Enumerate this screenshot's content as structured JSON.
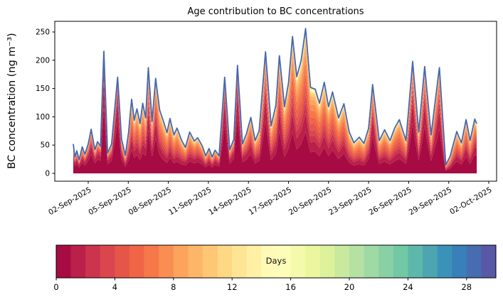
{
  "figure": {
    "title": "Age contribution to BC concentrations",
    "background_color": "#ffffff"
  },
  "axes": {
    "ylabel": "BC concentration (ng m⁻³)",
    "y_ticks": [
      0,
      50,
      100,
      150,
      200,
      250
    ],
    "x_tick_labels": [
      "02-Sep-2025",
      "05-Sep-2025",
      "08-Sep-2025",
      "11-Sep-2025",
      "14-Sep-2025",
      "17-Sep-2025",
      "20-Sep-2025",
      "23-Sep-2025",
      "26-Sep-2025",
      "29-Sep-2025",
      "02-Oct-2025"
    ],
    "x_tick_days": [
      0,
      3,
      6,
      9,
      12,
      15,
      18,
      21,
      24,
      27,
      30
    ],
    "x_tick_rotation_deg": 30,
    "grid": false
  },
  "colorbar": {
    "label": "Days",
    "ticks": [
      0,
      4,
      8,
      12,
      16,
      20,
      24,
      28
    ],
    "min": 0,
    "max": 30,
    "segments": 30,
    "orientation": "horizontal",
    "colormap": "Spectral",
    "colormap_anchors": [
      "#9e0142",
      "#d53e4f",
      "#f46d43",
      "#fdae61",
      "#fee08b",
      "#ffffbf",
      "#e6f598",
      "#abdda4",
      "#66c2a5",
      "#3288bd",
      "#5e4fa2"
    ],
    "outline_color": "#000000"
  },
  "chart_data": {
    "type": "area",
    "subtype": "stacked-age-spectrum",
    "title": "Age contribution to BC concentrations",
    "xlabel": "",
    "ylabel": "BC concentration (ng m⁻³)",
    "x_unit": "days since 02-Sep-2025 00:00 (x axis shows dates)",
    "xlim_days": [
      -2.5,
      30.6
    ],
    "ylim": [
      0,
      269
    ],
    "legend": "colorbar (Days, age of BC, 0-30, 30 discrete 1-day bins, Spectral colormap)",
    "total_line_color": "#4767ae",
    "age_bins": 30,
    "keypoint_format": [
      "day_offset",
      "total_ng_m3",
      "aged_fraction_0to1"
    ],
    "keypoints": [
      [
        -1.12,
        52,
        0.3
      ],
      [
        -1.0,
        29,
        0.3
      ],
      [
        -0.85,
        40,
        0.32
      ],
      [
        -0.68,
        24,
        0.32
      ],
      [
        -0.45,
        47,
        0.35
      ],
      [
        -0.25,
        34,
        0.35
      ],
      [
        0.0,
        52,
        0.32
      ],
      [
        0.22,
        78,
        0.3
      ],
      [
        0.5,
        42,
        0.32
      ],
      [
        0.7,
        56,
        0.3
      ],
      [
        0.92,
        48,
        0.25
      ],
      [
        1.17,
        216,
        0.12
      ],
      [
        1.45,
        36,
        0.28
      ],
      [
        1.75,
        52,
        0.32
      ],
      [
        2.2,
        170,
        0.13
      ],
      [
        2.5,
        60,
        0.35
      ],
      [
        2.78,
        32,
        0.42
      ],
      [
        3.02,
        72,
        0.5
      ],
      [
        3.25,
        131,
        0.5
      ],
      [
        3.45,
        94,
        0.55
      ],
      [
        3.65,
        114,
        0.55
      ],
      [
        3.88,
        88,
        0.58
      ],
      [
        4.08,
        124,
        0.55
      ],
      [
        4.3,
        98,
        0.5
      ],
      [
        4.5,
        187,
        0.35
      ],
      [
        4.78,
        92,
        0.5
      ],
      [
        5.05,
        168,
        0.4
      ],
      [
        5.35,
        112,
        0.55
      ],
      [
        5.62,
        93,
        0.6
      ],
      [
        5.9,
        72,
        0.6
      ],
      [
        6.12,
        97,
        0.55
      ],
      [
        6.42,
        68,
        0.6
      ],
      [
        6.65,
        80,
        0.6
      ],
      [
        7.0,
        58,
        0.58
      ],
      [
        7.28,
        46,
        0.52
      ],
      [
        7.6,
        73,
        0.55
      ],
      [
        7.95,
        57,
        0.52
      ],
      [
        8.2,
        63,
        0.5
      ],
      [
        8.55,
        48,
        0.48
      ],
      [
        8.8,
        31,
        0.45
      ],
      [
        9.05,
        44,
        0.42
      ],
      [
        9.28,
        29,
        0.42
      ],
      [
        9.5,
        41,
        0.4
      ],
      [
        9.8,
        31,
        0.38
      ],
      [
        10.22,
        170,
        0.16
      ],
      [
        10.6,
        42,
        0.35
      ],
      [
        10.9,
        60,
        0.3
      ],
      [
        11.18,
        191,
        0.16
      ],
      [
        11.55,
        52,
        0.4
      ],
      [
        11.85,
        70,
        0.45
      ],
      [
        12.18,
        99,
        0.45
      ],
      [
        12.5,
        58,
        0.52
      ],
      [
        12.8,
        75,
        0.55
      ],
      [
        13.28,
        215,
        0.3
      ],
      [
        13.7,
        84,
        0.58
      ],
      [
        14.05,
        120,
        0.55
      ],
      [
        14.32,
        208,
        0.42
      ],
      [
        14.7,
        118,
        0.62
      ],
      [
        15.0,
        160,
        0.58
      ],
      [
        15.3,
        242,
        0.52
      ],
      [
        15.62,
        171,
        0.62
      ],
      [
        15.95,
        200,
        0.6
      ],
      [
        16.28,
        256,
        0.55
      ],
      [
        16.65,
        152,
        0.62
      ],
      [
        17.0,
        149,
        0.6
      ],
      [
        17.32,
        124,
        0.62
      ],
      [
        17.68,
        161,
        0.55
      ],
      [
        18.0,
        118,
        0.6
      ],
      [
        18.3,
        144,
        0.55
      ],
      [
        18.75,
        98,
        0.6
      ],
      [
        19.15,
        123,
        0.55
      ],
      [
        19.55,
        73,
        0.6
      ],
      [
        19.9,
        54,
        0.6
      ],
      [
        20.3,
        64,
        0.6
      ],
      [
        20.65,
        53,
        0.6
      ],
      [
        21.0,
        80,
        0.5
      ],
      [
        21.3,
        157,
        0.32
      ],
      [
        21.8,
        58,
        0.55
      ],
      [
        22.2,
        77,
        0.58
      ],
      [
        22.6,
        58,
        0.58
      ],
      [
        22.95,
        80,
        0.58
      ],
      [
        23.3,
        95,
        0.58
      ],
      [
        23.8,
        58,
        0.55
      ],
      [
        24.3,
        198,
        0.28
      ],
      [
        24.75,
        73,
        0.5
      ],
      [
        25.2,
        189,
        0.28
      ],
      [
        25.68,
        68,
        0.5
      ],
      [
        26.3,
        187,
        0.33
      ],
      [
        26.78,
        15,
        0.5
      ],
      [
        27.1,
        30,
        0.55
      ],
      [
        27.6,
        74,
        0.55
      ],
      [
        27.95,
        54,
        0.55
      ],
      [
        28.3,
        95,
        0.5
      ],
      [
        28.6,
        58,
        0.55
      ],
      [
        28.95,
        96,
        0.45
      ],
      [
        29.1,
        88,
        0.45
      ]
    ]
  }
}
